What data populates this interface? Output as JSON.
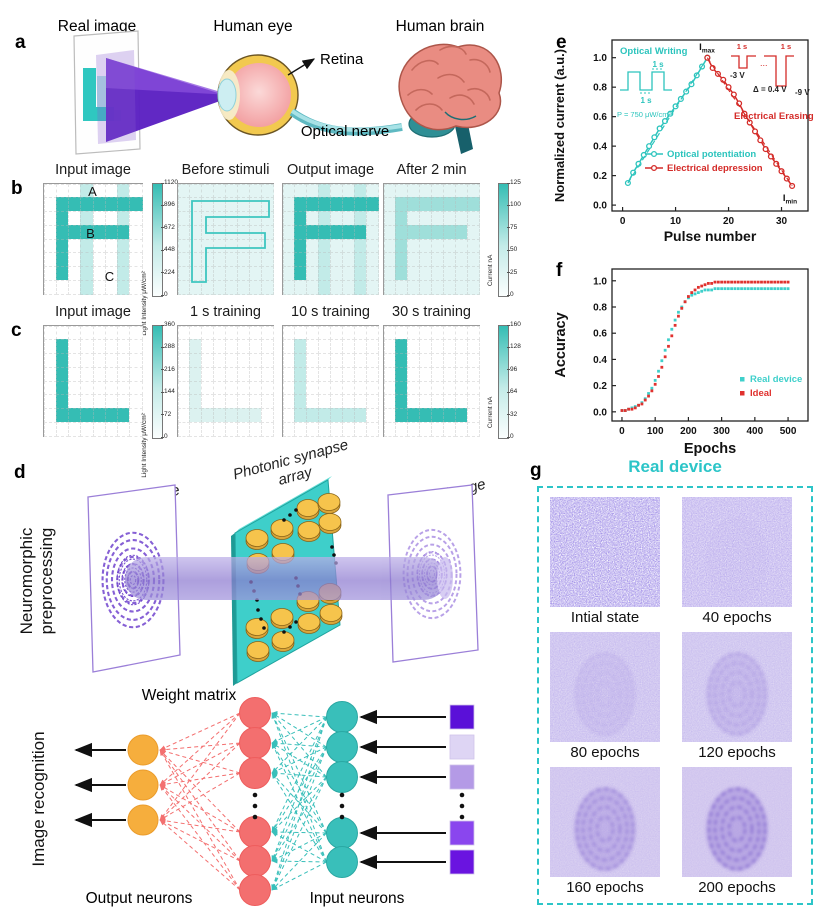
{
  "colors": {
    "teal": "#2fc7c0",
    "teal_dark": "#35bdb4",
    "red": "#d42b28",
    "purple_beam": "#8d7ad0",
    "accent_g": "#2cc5c8",
    "neuron_yellow": "#f6ae3d",
    "neuron_red": "#f36f6f",
    "neuron_teal": "#39bfba"
  },
  "grid_palette": {
    ".": "#ffffff",
    "b": "#e3f5f4",
    "f": "#dcf2f0",
    "l": "#c2ebe8",
    "m": "#9fdfda",
    "D": "#35bdb4"
  },
  "panel_a": {
    "label": "a",
    "frame_caption": "Real image",
    "eye_caption": "Human eye",
    "retina_label": "Retina",
    "nerve_label": "Optical nerve",
    "brain_caption": "Human brain"
  },
  "panel_b": {
    "label": "b",
    "titles": [
      "Input image",
      "Before stimuli",
      "Output image",
      "After 2 min"
    ],
    "region_labels": {
      "A": "A",
      "B": "B",
      "C": "C"
    },
    "colorbar_left": {
      "title": "Light Intensity μW/cm²",
      "ticks": [
        "0",
        "224",
        "448",
        "672",
        "896",
        "1120"
      ]
    },
    "colorbar_right": {
      "title": "Current nA",
      "ticks": [
        "0",
        "25",
        "50",
        "75",
        "100",
        "125"
      ]
    },
    "grids": [
      {
        "name": "input",
        "rows": [
          "...l..l.",
          ".DDDDDDD",
          ".D.l..l.",
          ".DDDDDD.",
          ".D.l..l.",
          ".D.l..l.",
          ".D.l..l.",
          "...l..l."
        ]
      },
      {
        "name": "before",
        "outline": true,
        "rows": [
          "bbbbbbbb",
          "bbbbbbbb",
          "bbbbbbbb",
          "bbbbbbbb",
          "bbbbbbbb",
          "bbbbbbbb",
          "bbbbbbbb",
          "bbbbbbbb"
        ]
      },
      {
        "name": "output",
        "rows": [
          "bbblbblb",
          "bDDDDDDD",
          "bDblbblb",
          "bDDDDDDb",
          "bDblbblb",
          "bDblbblb",
          "bDblbblb",
          "bbblbblb"
        ]
      },
      {
        "name": "after",
        "rows": [
          "bbbbbbbb",
          "bmmmmmmm",
          "bmbbbbbb",
          "bmmmmmmb",
          "bmbbbbbb",
          "bmbbbbbb",
          "bmbbbbbb",
          "bbbbbbbb"
        ]
      }
    ]
  },
  "panel_c": {
    "label": "c",
    "titles": [
      "Input image",
      "1 s training",
      "10 s training",
      "30 s training"
    ],
    "colorbar_left": {
      "title": "Light Intensity μW/cm²",
      "ticks": [
        "0",
        "72",
        "144",
        "216",
        "288",
        "360"
      ]
    },
    "colorbar_right": {
      "title": "Current nA",
      "ticks": [
        "0",
        "32",
        "64",
        "96",
        "128",
        "160"
      ]
    },
    "grids": [
      {
        "name": "input",
        "rows": [
          "........",
          ".D......",
          ".D......",
          ".D......",
          ".D......",
          ".D......",
          ".DDDDDD.",
          "........"
        ]
      },
      {
        "name": "1s",
        "rows": [
          "........",
          ".f......",
          ".f......",
          ".f......",
          ".f......",
          ".f......",
          ".ffffff.",
          "........"
        ]
      },
      {
        "name": "10s",
        "rows": [
          "........",
          ".l......",
          ".l......",
          ".l......",
          ".l......",
          ".l......",
          ".llllll.",
          "........"
        ]
      },
      {
        "name": "30s",
        "rows": [
          "........",
          ".D......",
          ".D......",
          ".D......",
          ".D......",
          ".D......",
          ".DDDDDD.",
          "........"
        ]
      }
    ]
  },
  "panel_d": {
    "label": "d",
    "side_label_top": "Neuromorphic preprocessing",
    "side_label_bottom": "Image recognition",
    "real_image_label": "Real image",
    "array_label": "Photonic synapse array",
    "output_image_label": "Output image",
    "weight_matrix_label": "Weight matrix",
    "output_neurons_label": "Output neurons",
    "input_neurons_label": "Input neurons",
    "input_square_colors": [
      "#5a10d8",
      "#ded5f4",
      "#b49ae6",
      "#8a46ee",
      "#6a14e0"
    ]
  },
  "panel_e": {
    "label": "e"
  },
  "panel_f": {
    "label": "f"
  },
  "panel_g": {
    "label": "g",
    "title": "Real device",
    "tiles": [
      {
        "caption": "Intial state",
        "noise": 1.0,
        "bg": "#ffffff",
        "print": 0.0
      },
      {
        "caption": "40 epochs",
        "noise": 0.62,
        "bg": "#e9e3f8",
        "print": 0.06
      },
      {
        "caption": "80 epochs",
        "noise": 0.42,
        "bg": "#e0d9f4",
        "print": 0.22
      },
      {
        "caption": "120 epochs",
        "noise": 0.34,
        "bg": "#ded7f3",
        "print": 0.42
      },
      {
        "caption": "160 epochs",
        "noise": 0.26,
        "bg": "#dbd2f1",
        "print": 0.68
      },
      {
        "caption": "200 epochs",
        "noise": 0.2,
        "bg": "#d9cff0",
        "print": 0.85
      }
    ]
  },
  "chart_data": [
    {
      "panel": "e",
      "type": "line",
      "xlabel": "Pulse number",
      "ylabel": "Normalized current (a.u.)",
      "xlim": [
        -2,
        35
      ],
      "ylim": [
        -0.04,
        1.12
      ],
      "xticks": [
        0,
        10,
        20,
        30
      ],
      "yticks": [
        "0.0",
        "0.2",
        "0.4",
        "0.6",
        "0.8",
        "1.0"
      ],
      "legend": [
        "Optical potentiation",
        "Electrical depression"
      ],
      "series": [
        {
          "name": "Optical potentiation",
          "color": "#2cc4bd",
          "marker": "circle",
          "line": "solid",
          "x": [
            1,
            2,
            3,
            4,
            5,
            6,
            7,
            8,
            9,
            10,
            11,
            12,
            13,
            14,
            15,
            16
          ],
          "y": [
            0.15,
            0.22,
            0.28,
            0.34,
            0.4,
            0.46,
            0.52,
            0.57,
            0.62,
            0.67,
            0.72,
            0.77,
            0.82,
            0.88,
            0.94,
            1.0
          ]
        },
        {
          "name": "Optical potentiation (fit)",
          "color": "#2cc4bd",
          "marker": "none",
          "line": "dashed",
          "x": [
            1,
            16
          ],
          "y": [
            0.15,
            1.0
          ]
        },
        {
          "name": "Electrical depression",
          "color": "#d42b28",
          "marker": "circle",
          "line": "solid",
          "x": [
            16,
            17,
            18,
            19,
            20,
            21,
            22,
            23,
            24,
            25,
            26,
            27,
            28,
            29,
            30,
            31,
            32
          ],
          "y": [
            1.0,
            0.93,
            0.89,
            0.85,
            0.8,
            0.75,
            0.69,
            0.62,
            0.56,
            0.5,
            0.44,
            0.38,
            0.33,
            0.28,
            0.23,
            0.18,
            0.13
          ]
        },
        {
          "name": "Electrical depression (fit)",
          "color": "#d42b28",
          "marker": "none",
          "line": "dashed",
          "x": [
            16,
            32
          ],
          "y": [
            1.0,
            0.13
          ]
        }
      ],
      "annotations": {
        "optical_writing": "Optical Writing",
        "pulse_width": "1 s",
        "pulse_interval": "1 s",
        "power": "P = 750 μW/cm²",
        "imax": "Imax",
        "imin": "Imin",
        "erase_1s_a": "1 s",
        "erase_1s_b": "1 s",
        "v_start": "-3 V",
        "v_step": "Δ = 0.4 V",
        "v_end": "-9 V",
        "dots": "...",
        "electrical_erasing": "Electrical Erasing"
      }
    },
    {
      "panel": "f",
      "type": "scatter",
      "xlabel": "Epochs",
      "ylabel": "Accuracy",
      "xlim": [
        -30,
        560
      ],
      "ylim": [
        -0.07,
        1.09
      ],
      "xticks": [
        0,
        100,
        200,
        300,
        400,
        500
      ],
      "yticks": [
        "0.0",
        "0.2",
        "0.4",
        "0.6",
        "0.8",
        "1.0"
      ],
      "legend": [
        "Real device",
        "Ideal"
      ],
      "x": [
        0,
        10,
        20,
        30,
        40,
        50,
        60,
        70,
        80,
        90,
        100,
        110,
        120,
        130,
        140,
        150,
        160,
        170,
        180,
        190,
        200,
        210,
        220,
        230,
        240,
        250,
        260,
        270,
        280,
        290,
        300,
        310,
        320,
        330,
        340,
        350,
        360,
        370,
        380,
        390,
        400,
        410,
        420,
        430,
        440,
        450,
        460,
        470,
        480,
        490,
        500
      ],
      "series": [
        {
          "name": "Real device",
          "color": "#3fd0cb",
          "marker": "square",
          "y": [
            0.01,
            0.01,
            0.02,
            0.03,
            0.04,
            0.05,
            0.07,
            0.1,
            0.14,
            0.18,
            0.24,
            0.31,
            0.39,
            0.47,
            0.55,
            0.63,
            0.7,
            0.76,
            0.8,
            0.84,
            0.87,
            0.89,
            0.9,
            0.91,
            0.92,
            0.93,
            0.93,
            0.93,
            0.94,
            0.94,
            0.94,
            0.94,
            0.94,
            0.94,
            0.94,
            0.94,
            0.94,
            0.94,
            0.94,
            0.94,
            0.94,
            0.94,
            0.94,
            0.94,
            0.94,
            0.94,
            0.94,
            0.94,
            0.94,
            0.94,
            0.94
          ]
        },
        {
          "name": "Ideal",
          "color": "#e0312e",
          "marker": "square",
          "y": [
            0.01,
            0.01,
            0.02,
            0.02,
            0.03,
            0.05,
            0.06,
            0.09,
            0.12,
            0.16,
            0.21,
            0.27,
            0.34,
            0.42,
            0.5,
            0.58,
            0.66,
            0.73,
            0.79,
            0.84,
            0.88,
            0.91,
            0.93,
            0.95,
            0.96,
            0.97,
            0.98,
            0.98,
            0.99,
            0.99,
            0.99,
            0.99,
            0.99,
            0.99,
            0.99,
            0.99,
            0.99,
            0.99,
            0.99,
            0.99,
            0.99,
            0.99,
            0.99,
            0.99,
            0.99,
            0.99,
            0.99,
            0.99,
            0.99,
            0.99,
            0.99
          ]
        }
      ]
    }
  ]
}
